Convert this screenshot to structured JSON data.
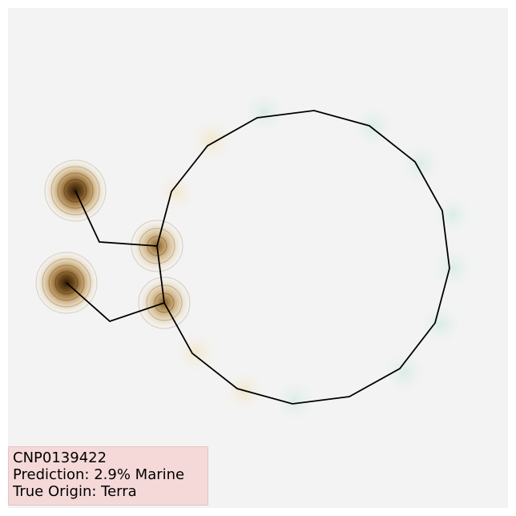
{
  "molecule": {
    "id": "CNP0139422"
  },
  "info": {
    "prediction": "Prediction: 2.9% Marine",
    "true_origin": "True Origin: Terra"
  },
  "colors": {
    "background": "#f3f3f3",
    "bond": "#000000",
    "positive_contribution": "#8a5a1a",
    "negative_contribution": "#cfe6e0",
    "info_box_fill": "#f5d9d9"
  }
}
